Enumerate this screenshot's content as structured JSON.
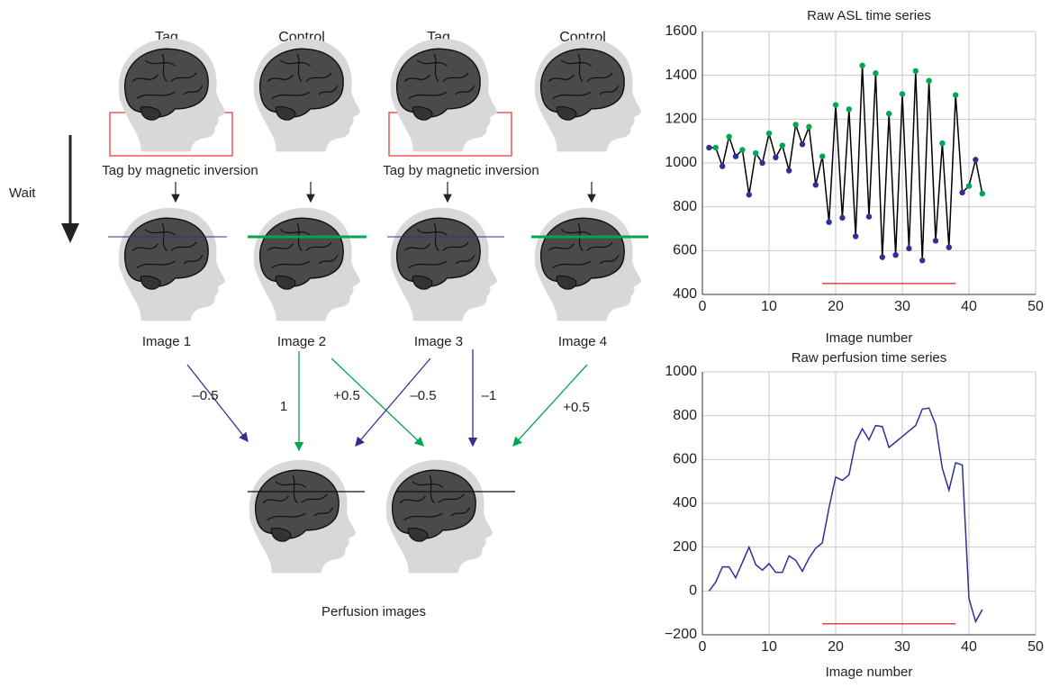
{
  "diagram": {
    "columns": [
      {
        "label": "Tag",
        "color": "#2e3192",
        "image": "Image 1"
      },
      {
        "label": "Control",
        "color": "#00a651",
        "image": "Image 2"
      },
      {
        "label": "Tag",
        "color": "#2e3192",
        "image": "Image 3"
      },
      {
        "label": "Control",
        "color": "#00a651",
        "image": "Image 4"
      }
    ],
    "tag_captions": [
      "Tag by magnetic inversion",
      "Tag by magnetic inversion"
    ],
    "wait": "Wait",
    "weights": [
      {
        "label": "–0.5",
        "color": "#2e3192"
      },
      {
        "label": "1",
        "color": "#00a651"
      },
      {
        "label": "+0.5",
        "color": "#00a651"
      },
      {
        "label": "–0.5",
        "color": "#2e3192"
      },
      {
        "label": "–1",
        "color": "#2e3192"
      },
      {
        "label": "+0.5",
        "color": "#00a651"
      }
    ],
    "output_caption": "Perfusion images"
  },
  "chart_data": [
    {
      "type": "line",
      "title": "Raw ASL time series",
      "x_label": "Image number",
      "x": [
        1,
        2,
        3,
        4,
        5,
        6,
        7,
        8,
        9,
        10,
        11,
        12,
        13,
        14,
        15,
        16,
        17,
        18,
        19,
        20,
        21,
        22,
        23,
        24,
        25,
        26,
        27,
        28,
        29,
        30,
        31,
        32,
        33,
        34,
        35,
        36,
        37,
        38,
        39,
        40,
        41,
        42
      ],
      "values": [
        1070,
        1070,
        985,
        1120,
        1030,
        1060,
        855,
        1045,
        1000,
        1135,
        1025,
        1080,
        965,
        1175,
        1085,
        1165,
        900,
        1030,
        730,
        1265,
        750,
        1245,
        665,
        1445,
        755,
        1410,
        570,
        1225,
        580,
        1315,
        610,
        1420,
        555,
        1375,
        645,
        1090,
        615,
        1310,
        865,
        895,
        1015,
        860
      ],
      "color": "#000000",
      "marker_colors": [
        "#2e3192",
        "#00a651"
      ],
      "xlim": [
        0,
        50
      ],
      "xticks": [
        0,
        10,
        20,
        30,
        40,
        50
      ],
      "ylim": [
        400,
        1600
      ],
      "yticks": [
        400,
        600,
        800,
        1000,
        1200,
        1400,
        1600
      ],
      "grid": true,
      "reference_line": {
        "x": [
          18,
          38
        ],
        "y": 450,
        "color": "#e03030"
      }
    },
    {
      "type": "line",
      "title": "Raw perfusion time series",
      "x_label": "Image number",
      "x": [
        1,
        2,
        3,
        4,
        5,
        6,
        7,
        8,
        9,
        10,
        11,
        12,
        13,
        14,
        15,
        16,
        17,
        18,
        19,
        20,
        21,
        22,
        23,
        24,
        25,
        26,
        27,
        28,
        29,
        30,
        31,
        32,
        33,
        34,
        35,
        36,
        37,
        38,
        39,
        40,
        41,
        42
      ],
      "values": [
        0,
        40,
        110,
        110,
        60,
        130,
        200,
        120,
        95,
        125,
        85,
        85,
        160,
        140,
        90,
        150,
        195,
        220,
        380,
        520,
        505,
        530,
        680,
        740,
        690,
        755,
        750,
        655,
        680,
        705,
        730,
        755,
        830,
        835,
        760,
        560,
        460,
        585,
        575,
        -35,
        -140,
        -85
      ],
      "color": "#2e3192",
      "xlim": [
        0,
        50
      ],
      "xticks": [
        0,
        10,
        20,
        30,
        40,
        50
      ],
      "ylim": [
        -200,
        1000
      ],
      "yticks": [
        {
          "value": -200,
          "label": "−200"
        },
        0,
        200,
        400,
        600,
        800,
        1000
      ],
      "grid": true,
      "reference_line": {
        "x": [
          18,
          38
        ],
        "y": -150,
        "color": "#e03030"
      }
    }
  ]
}
